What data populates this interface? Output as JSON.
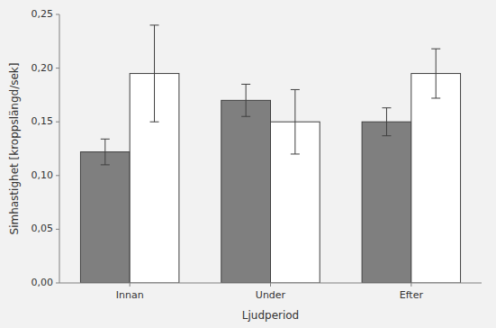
{
  "chart_data": {
    "type": "bar",
    "xlabel": "Ljudperiod",
    "ylabel": "Simhastighet [kroppslängd/sek]",
    "categories": [
      "Innan",
      "Under",
      "Efter"
    ],
    "series": [
      {
        "color": "#7f7f7f",
        "values": [
          0.122,
          0.17,
          0.15
        ],
        "errors": [
          0.012,
          0.015,
          0.013
        ]
      },
      {
        "color": "#ffffff",
        "values": [
          0.195,
          0.15,
          0.195
        ],
        "errors": [
          0.045,
          0.03,
          0.023
        ]
      }
    ],
    "ylim": [
      0,
      0.25
    ],
    "yticks": [
      {
        "value": 0.0,
        "label": "0,00"
      },
      {
        "value": 0.05,
        "label": "0,05"
      },
      {
        "value": 0.1,
        "label": "0,10"
      },
      {
        "value": 0.15,
        "label": "0,15"
      },
      {
        "value": 0.2,
        "label": "0,20"
      },
      {
        "value": 0.25,
        "label": "0,25"
      }
    ],
    "grid": false
  }
}
